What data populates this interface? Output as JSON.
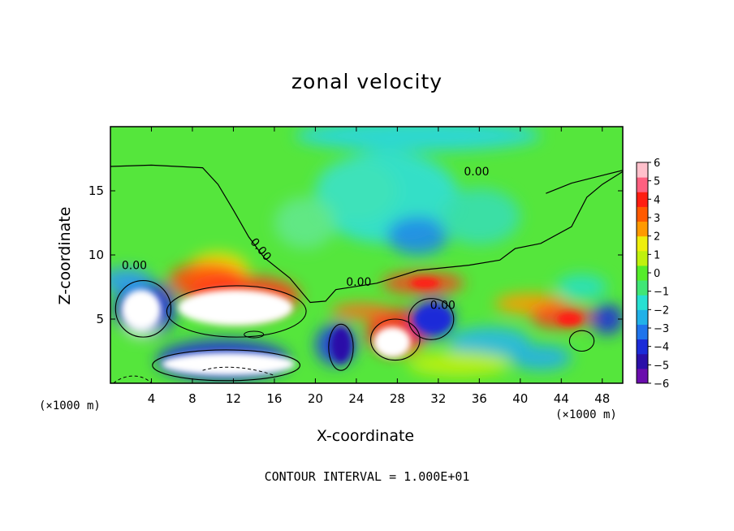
{
  "chart_data": {
    "type": "heatmap",
    "title": "zonal velocity",
    "xlabel": "X-coordinate",
    "ylabel": "Z-coordinate",
    "x_unit": "(×1000 m)",
    "y_unit": "(×1000 m)",
    "xlim": [
      0,
      50
    ],
    "ylim": [
      0,
      20
    ],
    "x_ticks": [
      4,
      8,
      12,
      16,
      20,
      24,
      28,
      32,
      36,
      40,
      44,
      48
    ],
    "y_ticks": [
      5,
      10,
      15
    ],
    "colorbar": {
      "min": -6,
      "max": 6,
      "ticks": [
        6,
        5,
        4,
        3,
        2,
        1,
        0,
        -1,
        -2,
        -3,
        -4,
        -5,
        -6
      ],
      "colors": [
        "#6a0dad",
        "#2b10a8",
        "#1c2cd8",
        "#1f74ec",
        "#21b1e8",
        "#27e0d2",
        "#40e676",
        "#55ec2a",
        "#bff10e",
        "#eeee0d",
        "#ff9a00",
        "#ff5a00",
        "#ff1e12",
        "#ff6080",
        "#ffc0cb"
      ]
    },
    "contours": [
      {
        "label": "0.00",
        "x": 34.5,
        "z": 16.2
      },
      {
        "label": "0.00",
        "x": 13.6,
        "z": 11.0
      },
      {
        "label": "0.00",
        "x": 1.1,
        "z": 8.9
      },
      {
        "label": "0.00",
        "x": 23.0,
        "z": 7.6
      },
      {
        "label": "0.00",
        "x": 31.2,
        "z": 5.8
      }
    ],
    "contour_interval": "CONTOUR INTERVAL = 1.000E+01"
  }
}
